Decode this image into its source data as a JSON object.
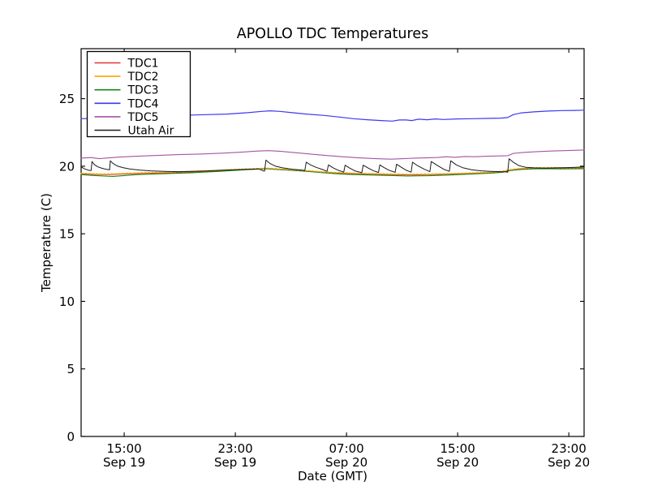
{
  "chart_data": {
    "type": "line",
    "title": "APOLLO TDC Temperatures",
    "xlabel": "Date (GMT)",
    "ylabel": "Temperature (C)",
    "grid": false,
    "legend_position": "upper left",
    "xlim": [
      0,
      36.2
    ],
    "ylim": [
      0,
      28.7
    ],
    "x_unit_note": "hours along axis; ticks every 8 hours",
    "y_ticks": [
      0,
      5,
      10,
      15,
      20,
      25
    ],
    "x_ticks": [
      {
        "t": 3.1,
        "time": "15:00",
        "date": "Sep 19"
      },
      {
        "t": 11.1,
        "time": "23:00",
        "date": "Sep 19"
      },
      {
        "t": 19.1,
        "time": "07:00",
        "date": "Sep 20"
      },
      {
        "t": 27.1,
        "time": "15:00",
        "date": "Sep 20"
      },
      {
        "t": 35.1,
        "time": "23:00",
        "date": "Sep 20"
      }
    ],
    "series": [
      {
        "name": "TDC1",
        "color": "#e53434",
        "linestyle": "solid",
        "width": 1.1,
        "points": [
          [
            0,
            19.44
          ],
          [
            0.8,
            19.4
          ],
          [
            1.6,
            19.38
          ],
          [
            2.5,
            19.4
          ],
          [
            4,
            19.46
          ],
          [
            6,
            19.51
          ],
          [
            8,
            19.58
          ],
          [
            10,
            19.66
          ],
          [
            11.5,
            19.74
          ],
          [
            12.5,
            19.78
          ],
          [
            13.3,
            19.82
          ],
          [
            14.2,
            19.76
          ],
          [
            15.2,
            19.7
          ],
          [
            16.2,
            19.64
          ],
          [
            17.2,
            19.56
          ],
          [
            18.2,
            19.5
          ],
          [
            19.2,
            19.46
          ],
          [
            20.5,
            19.42
          ],
          [
            22,
            19.39
          ],
          [
            23.5,
            19.36
          ],
          [
            25,
            19.38
          ],
          [
            26.5,
            19.41
          ],
          [
            28,
            19.46
          ],
          [
            29.3,
            19.51
          ],
          [
            30.3,
            19.58
          ],
          [
            30.9,
            19.71
          ],
          [
            31.6,
            19.8
          ],
          [
            32.5,
            19.84
          ],
          [
            33.5,
            19.86
          ],
          [
            34.5,
            19.84
          ],
          [
            36.2,
            19.86
          ]
        ]
      },
      {
        "name": "TDC3",
        "color": "#168516",
        "linestyle": "solid",
        "width": 1.1,
        "points": [
          [
            0,
            19.38
          ],
          [
            0.8,
            19.32
          ],
          [
            1.6,
            19.28
          ],
          [
            2.3,
            19.25
          ],
          [
            3,
            19.3
          ],
          [
            4,
            19.38
          ],
          [
            6,
            19.45
          ],
          [
            8,
            19.52
          ],
          [
            10,
            19.62
          ],
          [
            11.5,
            19.72
          ],
          [
            12.5,
            19.78
          ],
          [
            13.3,
            19.82
          ],
          [
            14.2,
            19.76
          ],
          [
            15.2,
            19.7
          ],
          [
            16.2,
            19.62
          ],
          [
            17.2,
            19.54
          ],
          [
            18.2,
            19.46
          ],
          [
            19.2,
            19.4
          ],
          [
            20.5,
            19.36
          ],
          [
            22,
            19.32
          ],
          [
            23.5,
            19.28
          ],
          [
            25,
            19.3
          ],
          [
            26.5,
            19.35
          ],
          [
            28,
            19.42
          ],
          [
            29.3,
            19.48
          ],
          [
            30.3,
            19.55
          ],
          [
            30.9,
            19.68
          ],
          [
            31.6,
            19.76
          ],
          [
            32.5,
            19.8
          ],
          [
            33.5,
            19.82
          ],
          [
            34.5,
            19.8
          ],
          [
            36.2,
            19.82
          ]
        ]
      },
      {
        "name": "TDC2",
        "color": "#ffa500",
        "linestyle": "dotted",
        "width": 1.5,
        "points": [
          [
            0,
            19.48
          ],
          [
            0.8,
            19.44
          ],
          [
            1.6,
            19.42
          ],
          [
            2.5,
            19.44
          ],
          [
            4,
            19.5
          ],
          [
            6,
            19.55
          ],
          [
            8,
            19.62
          ],
          [
            10,
            19.7
          ],
          [
            11.5,
            19.78
          ],
          [
            12.5,
            19.82
          ],
          [
            13.3,
            19.86
          ],
          [
            14.2,
            19.8
          ],
          [
            15.2,
            19.74
          ],
          [
            16.2,
            19.68
          ],
          [
            17.2,
            19.6
          ],
          [
            18.2,
            19.54
          ],
          [
            19.2,
            19.5
          ],
          [
            20.5,
            19.46
          ],
          [
            22,
            19.43
          ],
          [
            23.5,
            19.4
          ],
          [
            25,
            19.42
          ],
          [
            26.5,
            19.45
          ],
          [
            28,
            19.5
          ],
          [
            29.3,
            19.55
          ],
          [
            30.3,
            19.62
          ],
          [
            30.9,
            19.75
          ],
          [
            31.6,
            19.84
          ],
          [
            32.5,
            19.88
          ],
          [
            33.5,
            19.9
          ],
          [
            34.5,
            19.88
          ],
          [
            36.2,
            19.9
          ]
        ]
      },
      {
        "name": "TDC4",
        "color": "#3a3af0",
        "linestyle": "solid",
        "width": 1.2,
        "points": [
          [
            0,
            23.52
          ],
          [
            1.5,
            23.56
          ],
          [
            3,
            23.6
          ],
          [
            5,
            23.68
          ],
          [
            7,
            23.76
          ],
          [
            9,
            23.82
          ],
          [
            10.5,
            23.86
          ],
          [
            12,
            23.96
          ],
          [
            13,
            24.06
          ],
          [
            13.6,
            24.1
          ],
          [
            14.3,
            24.06
          ],
          [
            15.2,
            23.96
          ],
          [
            16.2,
            23.86
          ],
          [
            17.5,
            23.76
          ],
          [
            18.6,
            23.64
          ],
          [
            19.6,
            23.52
          ],
          [
            20.6,
            23.44
          ],
          [
            21.6,
            23.38
          ],
          [
            22.4,
            23.34
          ],
          [
            22.9,
            23.42
          ],
          [
            23.4,
            23.42
          ],
          [
            23.8,
            23.38
          ],
          [
            24.3,
            23.48
          ],
          [
            24.9,
            23.44
          ],
          [
            25.5,
            23.5
          ],
          [
            26.1,
            23.46
          ],
          [
            27,
            23.5
          ],
          [
            28.2,
            23.52
          ],
          [
            29.4,
            23.54
          ],
          [
            30.2,
            23.56
          ],
          [
            30.7,
            23.6
          ],
          [
            31.1,
            23.82
          ],
          [
            31.7,
            23.95
          ],
          [
            32.6,
            24.02
          ],
          [
            33.6,
            24.08
          ],
          [
            34.6,
            24.12
          ],
          [
            35.5,
            24.13
          ],
          [
            36.2,
            24.15
          ]
        ]
      },
      {
        "name": "TDC5",
        "color": "#a653a6",
        "linestyle": "solid",
        "width": 1.1,
        "points": [
          [
            0,
            20.6
          ],
          [
            0.7,
            20.64
          ],
          [
            1.3,
            20.56
          ],
          [
            2,
            20.62
          ],
          [
            2.8,
            20.68
          ],
          [
            4,
            20.74
          ],
          [
            5.5,
            20.8
          ],
          [
            7,
            20.86
          ],
          [
            8.5,
            20.9
          ],
          [
            10,
            20.96
          ],
          [
            11.5,
            21.04
          ],
          [
            12.7,
            21.12
          ],
          [
            13.5,
            21.15
          ],
          [
            14.4,
            21.1
          ],
          [
            15.4,
            21.0
          ],
          [
            16.5,
            20.9
          ],
          [
            17.6,
            20.8
          ],
          [
            18.8,
            20.7
          ],
          [
            20,
            20.62
          ],
          [
            21.2,
            20.56
          ],
          [
            22.3,
            20.52
          ],
          [
            23.2,
            20.56
          ],
          [
            24,
            20.6
          ],
          [
            24.8,
            20.62
          ],
          [
            25.6,
            20.64
          ],
          [
            26.3,
            20.7
          ],
          [
            26.9,
            20.66
          ],
          [
            27.6,
            20.72
          ],
          [
            28.3,
            20.7
          ],
          [
            29.2,
            20.74
          ],
          [
            30.1,
            20.76
          ],
          [
            30.7,
            20.78
          ],
          [
            31.1,
            20.95
          ],
          [
            31.8,
            21.02
          ],
          [
            32.8,
            21.08
          ],
          [
            33.8,
            21.12
          ],
          [
            35,
            21.16
          ],
          [
            36.2,
            21.2
          ]
        ]
      },
      {
        "name": "Utah Air",
        "color": "#1a1a1a",
        "linestyle": "solid",
        "width": 1.0,
        "points": [
          [
            0,
            19.95
          ],
          [
            0.25,
            19.8
          ],
          [
            0.55,
            19.7
          ],
          [
            0.72,
            19.68
          ],
          [
            0.78,
            20.35
          ],
          [
            0.95,
            20.12
          ],
          [
            1.2,
            19.95
          ],
          [
            1.5,
            19.85
          ],
          [
            1.8,
            19.78
          ],
          [
            2.05,
            19.74
          ],
          [
            2.1,
            20.4
          ],
          [
            2.3,
            20.2
          ],
          [
            2.6,
            20.02
          ],
          [
            3,
            19.9
          ],
          [
            3.5,
            19.8
          ],
          [
            4.2,
            19.72
          ],
          [
            5,
            19.66
          ],
          [
            6,
            19.62
          ],
          [
            7,
            19.6
          ],
          [
            8,
            19.62
          ],
          [
            9,
            19.65
          ],
          [
            10,
            19.7
          ],
          [
            11,
            19.74
          ],
          [
            12,
            19.78
          ],
          [
            12.8,
            19.8
          ],
          [
            13.1,
            19.66
          ],
          [
            13.2,
            19.64
          ],
          [
            13.3,
            20.45
          ],
          [
            13.6,
            20.2
          ],
          [
            14,
            20.0
          ],
          [
            14.5,
            19.88
          ],
          [
            15.2,
            19.78
          ],
          [
            15.9,
            19.72
          ],
          [
            16.1,
            19.68
          ],
          [
            16.2,
            20.3
          ],
          [
            16.5,
            20.1
          ],
          [
            16.9,
            19.92
          ],
          [
            17.4,
            19.75
          ],
          [
            17.7,
            19.62
          ],
          [
            17.8,
            20.1
          ],
          [
            18.1,
            19.9
          ],
          [
            18.5,
            19.7
          ],
          [
            18.9,
            19.56
          ],
          [
            19,
            20.08
          ],
          [
            19.3,
            19.88
          ],
          [
            19.7,
            19.66
          ],
          [
            20.2,
            19.52
          ],
          [
            20.3,
            20.08
          ],
          [
            20.6,
            19.9
          ],
          [
            21,
            19.68
          ],
          [
            21.4,
            19.54
          ],
          [
            21.5,
            20.1
          ],
          [
            21.8,
            19.9
          ],
          [
            22.2,
            19.68
          ],
          [
            22.6,
            19.55
          ],
          [
            22.7,
            20.15
          ],
          [
            23,
            19.95
          ],
          [
            23.4,
            19.7
          ],
          [
            23.75,
            19.56
          ],
          [
            23.85,
            20.3
          ],
          [
            24.2,
            20.05
          ],
          [
            24.7,
            19.78
          ],
          [
            25.1,
            19.6
          ],
          [
            25.2,
            20.35
          ],
          [
            25.6,
            20.08
          ],
          [
            26.1,
            19.78
          ],
          [
            26.5,
            19.62
          ],
          [
            26.6,
            20.4
          ],
          [
            27,
            20.1
          ],
          [
            27.5,
            19.88
          ],
          [
            28.1,
            19.74
          ],
          [
            28.8,
            19.66
          ],
          [
            29.5,
            19.62
          ],
          [
            30.2,
            19.6
          ],
          [
            30.6,
            19.58
          ],
          [
            30.7,
            19.55
          ],
          [
            30.8,
            20.55
          ],
          [
            31.1,
            20.3
          ],
          [
            31.5,
            20.05
          ],
          [
            32,
            19.92
          ],
          [
            32.6,
            19.88
          ],
          [
            33.4,
            19.86
          ],
          [
            34.2,
            19.88
          ],
          [
            35,
            19.9
          ],
          [
            35.6,
            19.92
          ],
          [
            36.2,
            19.95
          ]
        ]
      }
    ],
    "legend_order": [
      "TDC1",
      "TDC2",
      "TDC3",
      "TDC4",
      "TDC5",
      "Utah Air"
    ]
  }
}
